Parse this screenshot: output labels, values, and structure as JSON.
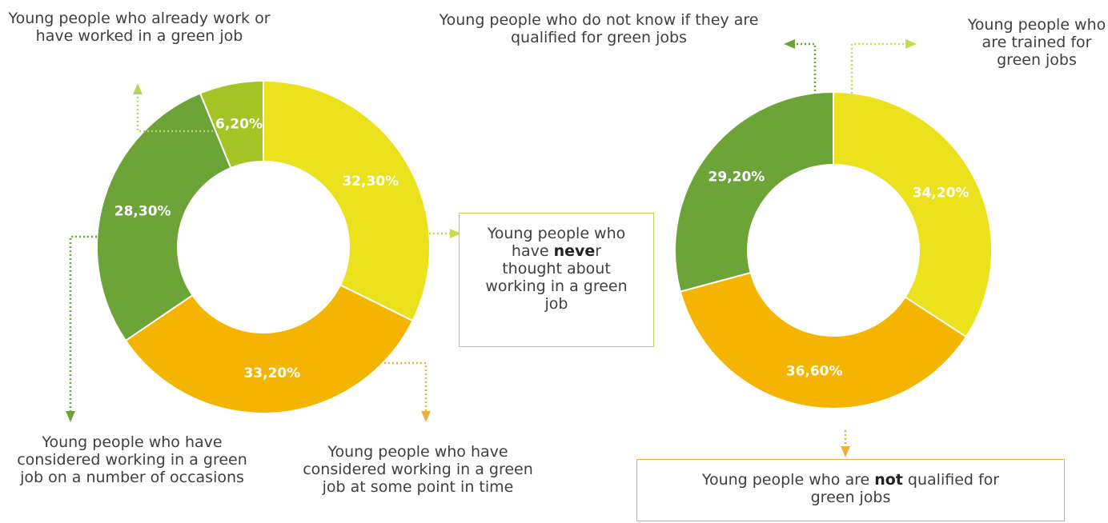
{
  "chart_data": [
    {
      "type": "pie",
      "donut": true,
      "slices": [
        {
          "value": 32.3,
          "label": "32,30%",
          "category": "Young people who have never thought about working in a green job",
          "color": "#ece11d"
        },
        {
          "value": 33.2,
          "label": "33,20%",
          "category": "Young people who have considered working in a green job at some point in time",
          "color": "#f4b400"
        },
        {
          "value": 28.3,
          "label": "28,30%",
          "category": "Young people who have considered working in a green job on a number of occasions",
          "color": "#6da437"
        },
        {
          "value": 6.2,
          "label": "6,20%",
          "category": "Young people who already work or have worked in a green job",
          "color": "#a3c424"
        }
      ]
    },
    {
      "type": "pie",
      "donut": true,
      "slices": [
        {
          "value": 34.2,
          "label": "34,20%",
          "category": "Young people who are trained for green jobs",
          "color": "#ece11d"
        },
        {
          "value": 36.6,
          "label": "36,60%",
          "category": "Young people who are not qualified for green jobs",
          "color": "#f4b400"
        },
        {
          "value": 29.2,
          "label": "29,20%",
          "category": "Young people who do not know if they are qualified for green jobs",
          "color": "#6da437"
        }
      ]
    }
  ],
  "labels": {
    "worked_green": "Young people who already work or have worked in a green job",
    "never_pre": "Young people who have ",
    "never_bold": "neve",
    "never_post": "r thought about working in a green job",
    "considered_many": "Young people who have considered working in a green job on a number of occasions",
    "considered_once": "Young people who have considered working in a green job at some point in time",
    "do_not_know": "Young people who do not know if they are qualified for green jobs",
    "trained": "Young people who are trained for green jobs",
    "not_qualified_pre": "Young people who are ",
    "not_qualified_bold": "not",
    "not_qualified_post": " qualified for green jobs"
  },
  "colors": {
    "yellow": "#ece11d",
    "orange": "#f4b400",
    "green": "#6da437",
    "lime": "#a3c424",
    "leader_lime": "#b7d45a",
    "leader_orange": "#eab23a",
    "leader_green": "#6da437"
  }
}
